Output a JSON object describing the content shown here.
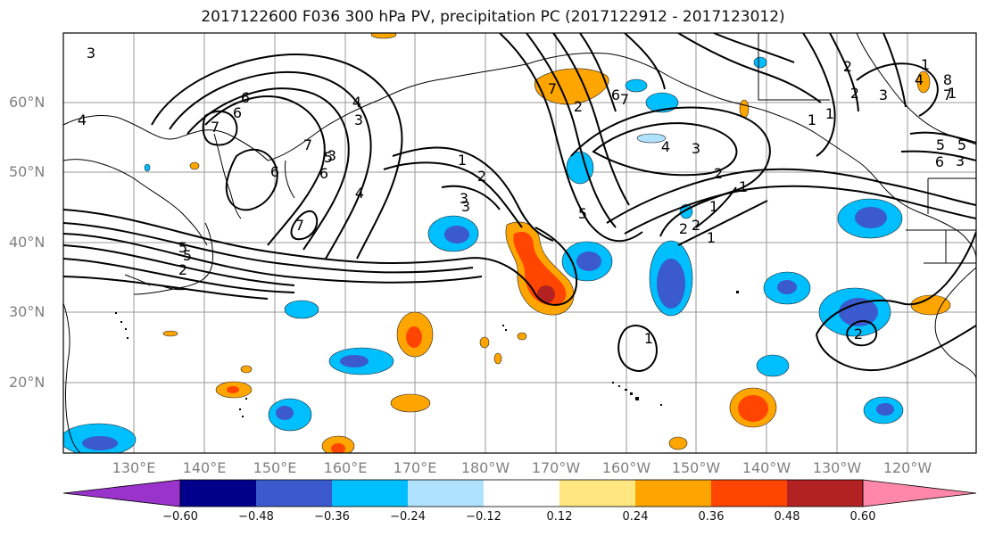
{
  "title": "2017122600 F036 300 hPa PV, precipitation PC (2017122912 - 2017123012)",
  "lat_labels": [
    "60°N",
    "50°N",
    "40°N",
    "30°N",
    "20°N"
  ],
  "lon_labels": [
    "130°E",
    "140°E",
    "150°E",
    "160°E",
    "170°E",
    "180°W",
    "170°W",
    "160°W",
    "150°W",
    "140°W",
    "130°W",
    "120°W"
  ],
  "contour_labels": [
    "3",
    "4",
    "5",
    "6",
    "7",
    "6",
    "7",
    "5",
    "4",
    "3",
    "2",
    "1",
    "7",
    "6",
    "5",
    "4",
    "3",
    "2",
    "1",
    "1",
    "2",
    "1",
    "2",
    "1",
    "2",
    "3",
    "4",
    "5",
    "6",
    "7",
    "8",
    "5",
    "3",
    "1",
    "6",
    "7",
    "6",
    "5",
    "4",
    "3",
    "2",
    "1",
    "1",
    "1",
    "7",
    "2",
    "3",
    "2",
    "3",
    "2"
  ],
  "colorbar": {
    "colors": [
      "#9933cc",
      "#00008b",
      "#3a5acd",
      "#00bfff",
      "#b0e2ff",
      "#ffffff",
      "#ffe680",
      "#ffa500",
      "#ff4500",
      "#b22222",
      "#ff88aa"
    ],
    "labels": [
      "−0.60",
      "−0.48",
      "−0.36",
      "−0.24",
      "−0.12",
      "0.12",
      "0.24",
      "0.36",
      "0.48",
      "0.60"
    ]
  }
}
